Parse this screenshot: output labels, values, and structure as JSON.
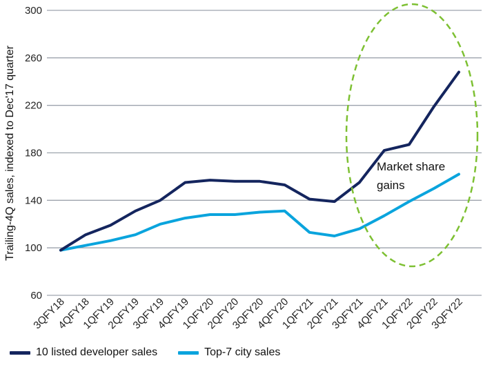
{
  "chart_data": {
    "type": "line",
    "ylabel": "Trailing-4Q sales, indexed to Dec'17 quarter",
    "xlabel": "",
    "ylim": [
      60,
      300
    ],
    "yticks": [
      60,
      100,
      140,
      180,
      220,
      260,
      300
    ],
    "grid": "horizontal",
    "categories": [
      "3QFY18",
      "4QFY18",
      "1QFY19",
      "2QFY19",
      "3QFY19",
      "4QFY19",
      "1QFY20",
      "2QFY20",
      "3QFY20",
      "4QFY20",
      "1QFY21",
      "2QFY21",
      "3QFY21",
      "4QFY21",
      "1QFY22",
      "2QFY22",
      "3QFY22"
    ],
    "series": [
      {
        "name": "10 listed developer sales",
        "color": "#14255e",
        "values": [
          98,
          111,
          119,
          131,
          140,
          155,
          157,
          156,
          156,
          153,
          141,
          139,
          155,
          182,
          187,
          219,
          248
        ]
      },
      {
        "name": "Top-7 city sales",
        "color": "#0aa4dd",
        "values": [
          98,
          102,
          106,
          111,
          120,
          125,
          128,
          128,
          130,
          131,
          113,
          110,
          116,
          127,
          139,
          150,
          162
        ]
      }
    ],
    "annotation": {
      "text_lines": [
        "Market share",
        "gains"
      ],
      "shape": "dashed-ellipse",
      "color": "#7dc032"
    },
    "legend_position": "bottom"
  }
}
